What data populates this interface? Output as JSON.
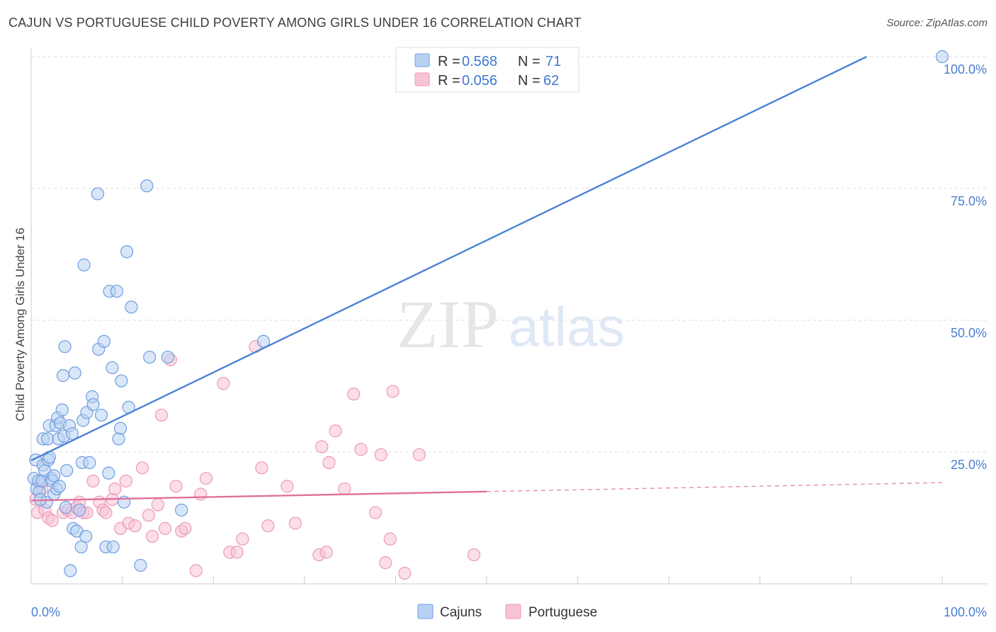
{
  "title": "CAJUN VS PORTUGUESE CHILD POVERTY AMONG GIRLS UNDER 16 CORRELATION CHART",
  "source": "Source: ZipAtlas.com",
  "watermark": {
    "zip": "ZIP",
    "atlas": "atlas"
  },
  "colors": {
    "cajuns": "#4a82d6",
    "cajuns_fill": "#b8d1f3",
    "cajuns_stroke": "#6f9de0",
    "portuguese": "#e0709a",
    "portuguese_fill": "#f8c3d5",
    "portuguese_stroke": "#eb9ab8",
    "axis_label": "#4a7fd0",
    "grid": "#dddddd"
  },
  "legend": {
    "rows": [
      {
        "r_label": "R = ",
        "r_value": "0.568",
        "n_label": "N = ",
        "n_value": "71"
      },
      {
        "r_label": "R = ",
        "r_value": "0.056",
        "n_label": "N = ",
        "n_value": "62"
      }
    ]
  },
  "chart_data": {
    "type": "scatter",
    "title": "CAJUN VS PORTUGUESE CHILD POVERTY AMONG GIRLS UNDER 16 CORRELATION CHART",
    "xlabel": "",
    "ylabel": "Child Poverty Among Girls Under 16",
    "xlim": [
      0,
      100
    ],
    "ylim": [
      0,
      100
    ],
    "x_tick_labels": [
      "0.0%",
      "100.0%"
    ],
    "y_ticks": [
      25,
      50,
      75,
      100
    ],
    "y_tick_labels": [
      "25.0%",
      "50.0%",
      "75.0%",
      "100.0%"
    ],
    "series": [
      {
        "name": "Cajuns",
        "r": 0.568,
        "n": 71,
        "trend": {
          "x0": 0,
          "y0": 23.4,
          "x1": 91.7,
          "y1": 100,
          "style": "solid"
        },
        "points": [
          [
            0.3,
            20
          ],
          [
            0.5,
            23.5
          ],
          [
            0.6,
            18
          ],
          [
            0.8,
            19.5
          ],
          [
            0.9,
            17.5
          ],
          [
            1.2,
            19.5
          ],
          [
            1.3,
            27.5
          ],
          [
            1.3,
            22.5
          ],
          [
            1.5,
            21.5
          ],
          [
            1.7,
            15.5
          ],
          [
            1.8,
            27.5
          ],
          [
            1.9,
            23.5
          ],
          [
            2.0,
            24.0
          ],
          [
            2.0,
            30.0
          ],
          [
            2.2,
            20.0
          ],
          [
            2.3,
            19.5
          ],
          [
            2.5,
            17.0
          ],
          [
            2.5,
            20.5
          ],
          [
            2.7,
            30.0
          ],
          [
            2.8,
            18.0
          ],
          [
            2.9,
            31.5
          ],
          [
            3.0,
            27.5
          ],
          [
            3.1,
            18.5
          ],
          [
            3.2,
            30.5
          ],
          [
            3.4,
            33.0
          ],
          [
            3.5,
            39.5
          ],
          [
            3.6,
            28.0
          ],
          [
            3.7,
            45.0
          ],
          [
            3.8,
            14.5
          ],
          [
            3.9,
            21.5
          ],
          [
            4.2,
            30.0
          ],
          [
            4.3,
            2.5
          ],
          [
            4.5,
            28.5
          ],
          [
            4.6,
            10.5
          ],
          [
            4.8,
            40.0
          ],
          [
            5.0,
            10.0
          ],
          [
            5.3,
            14.0
          ],
          [
            5.5,
            7.0
          ],
          [
            5.6,
            23.0
          ],
          [
            5.7,
            31.0
          ],
          [
            5.8,
            60.5
          ],
          [
            6.0,
            9.0
          ],
          [
            6.1,
            32.5
          ],
          [
            6.4,
            23.0
          ],
          [
            6.7,
            35.5
          ],
          [
            6.8,
            34.0
          ],
          [
            7.3,
            74.0
          ],
          [
            7.4,
            44.5
          ],
          [
            7.7,
            32.0
          ],
          [
            8.0,
            46.0
          ],
          [
            8.2,
            7.0
          ],
          [
            8.5,
            21.0
          ],
          [
            8.6,
            55.5
          ],
          [
            8.9,
            41.0
          ],
          [
            9.0,
            7.0
          ],
          [
            9.4,
            55.5
          ],
          [
            9.6,
            27.5
          ],
          [
            9.8,
            29.5
          ],
          [
            9.9,
            38.5
          ],
          [
            10.2,
            15.5
          ],
          [
            10.5,
            63.0
          ],
          [
            10.7,
            33.5
          ],
          [
            11.0,
            52.5
          ],
          [
            12.0,
            3.5
          ],
          [
            12.7,
            75.5
          ],
          [
            13.0,
            43.0
          ],
          [
            15.0,
            43.0
          ],
          [
            16.5,
            14.0
          ],
          [
            25.5,
            46.0
          ],
          [
            100.0,
            100.0
          ],
          [
            1.0,
            16.0
          ]
        ]
      },
      {
        "name": "Portuguese",
        "r": 0.056,
        "n": 62,
        "trend": {
          "x0": 0,
          "y0": 15.8,
          "x1": 50,
          "y1": 17.5,
          "style": "solid",
          "ext": {
            "x0": 50,
            "y0": 17.5,
            "x1": 100,
            "y1": 19.2,
            "style": "dashed"
          }
        },
        "points": [
          [
            0.5,
            16.0
          ],
          [
            0.7,
            13.5
          ],
          [
            1.0,
            19.0
          ],
          [
            1.2,
            18.0
          ],
          [
            1.5,
            14.0
          ],
          [
            1.9,
            12.5
          ],
          [
            2.3,
            12.0
          ],
          [
            3.5,
            13.5
          ],
          [
            4.0,
            14.0
          ],
          [
            4.5,
            13.5
          ],
          [
            5.0,
            14.5
          ],
          [
            5.3,
            15.5
          ],
          [
            5.7,
            13.5
          ],
          [
            6.1,
            13.5
          ],
          [
            6.8,
            19.5
          ],
          [
            7.5,
            15.5
          ],
          [
            7.9,
            14.0
          ],
          [
            8.2,
            13.5
          ],
          [
            8.9,
            16.0
          ],
          [
            9.2,
            18.0
          ],
          [
            9.8,
            10.5
          ],
          [
            10.4,
            19.5
          ],
          [
            10.7,
            11.5
          ],
          [
            11.4,
            11.0
          ],
          [
            12.2,
            22.0
          ],
          [
            12.9,
            13.0
          ],
          [
            13.3,
            9.0
          ],
          [
            13.9,
            15.0
          ],
          [
            14.3,
            32.0
          ],
          [
            14.7,
            10.5
          ],
          [
            15.3,
            42.5
          ],
          [
            15.9,
            18.5
          ],
          [
            16.5,
            10.0
          ],
          [
            16.9,
            10.5
          ],
          [
            18.1,
            2.5
          ],
          [
            18.6,
            17.0
          ],
          [
            19.2,
            20.0
          ],
          [
            21.1,
            38.0
          ],
          [
            21.8,
            6.0
          ],
          [
            22.6,
            6.0
          ],
          [
            23.2,
            8.5
          ],
          [
            24.6,
            45.0
          ],
          [
            25.3,
            22.0
          ],
          [
            26.0,
            11.0
          ],
          [
            28.1,
            18.5
          ],
          [
            29.0,
            11.5
          ],
          [
            31.6,
            5.5
          ],
          [
            31.9,
            26.0
          ],
          [
            32.4,
            6.0
          ],
          [
            32.7,
            23.0
          ],
          [
            33.4,
            29.0
          ],
          [
            34.4,
            18.0
          ],
          [
            35.4,
            36.0
          ],
          [
            36.2,
            25.5
          ],
          [
            37.8,
            13.5
          ],
          [
            38.4,
            24.5
          ],
          [
            38.9,
            4.0
          ],
          [
            39.4,
            8.5
          ],
          [
            39.7,
            36.5
          ],
          [
            41.0,
            2.0
          ],
          [
            42.6,
            24.5
          ],
          [
            48.6,
            5.5
          ]
        ]
      }
    ],
    "legend_position": "top-center"
  }
}
